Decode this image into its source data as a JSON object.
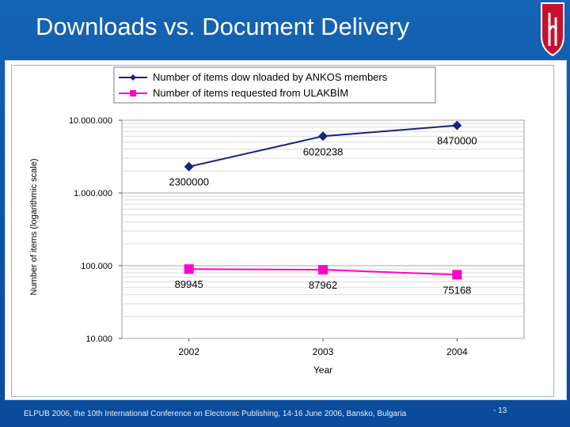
{
  "slide": {
    "title": "Downloads vs. Document Delivery",
    "footer": "ELPUB 2006, the 10th International Conference on Electronic Publishing, 14-16 June 2006, Bansko, Bulgaria",
    "page_number": "- 13",
    "colors": {
      "background": "#0d55a6",
      "logo": "#c8102e"
    },
    "logo_icon": "university-logo-icon"
  },
  "chart_data": {
    "type": "line",
    "title": "",
    "xlabel": "Year",
    "ylabel": "Number of items (logarithmic scale)",
    "yscale": "log",
    "ylim": [
      10000,
      10000000
    ],
    "ytick_labels": [
      "10.000.000",
      "1.000.000",
      "100.000",
      "10.000"
    ],
    "ytick_values": [
      10000000,
      1000000,
      100000,
      10000
    ],
    "categories": [
      "2002",
      "2003",
      "2004"
    ],
    "grid": true,
    "legend_position": "top",
    "series": [
      {
        "name": "Number of items dow nloaded by ANKOS members",
        "values": [
          2300000,
          6020238,
          8470000
        ],
        "labels": [
          "2300000",
          "6020238",
          "8470000"
        ],
        "color": "#1a237e",
        "marker": "diamond"
      },
      {
        "name": "Number of items requested from ULAKBİM",
        "values": [
          89945,
          87962,
          75168
        ],
        "labels": [
          "89945",
          "87962",
          "75168"
        ],
        "color": "#ff00cc",
        "marker": "square"
      }
    ]
  }
}
